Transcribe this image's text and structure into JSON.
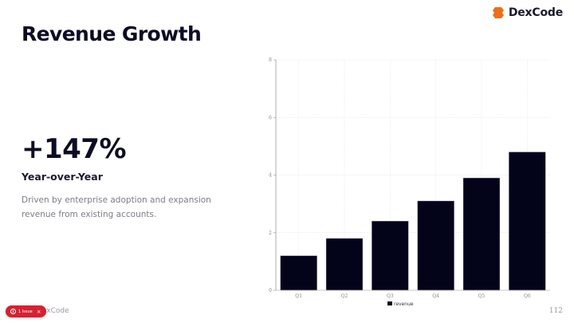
{
  "brand": {
    "name": "DexCode",
    "accent_color": "#e8711c"
  },
  "slide": {
    "title": "Revenue Growth",
    "stat_value": "+147%",
    "stat_label": "Year-over-Year",
    "description": "Driven by enterprise adoption and expansion revenue from existing accounts."
  },
  "footer": {
    "brand_text": "DexCode",
    "page_number": "112"
  },
  "issue_badge": {
    "label": "1 Issue",
    "close": "×",
    "color": "#d32233"
  },
  "chart_data": {
    "type": "bar",
    "title": "",
    "xlabel": "",
    "ylabel": "",
    "categories": [
      "Q1",
      "Q2",
      "Q3",
      "Q4",
      "Q5",
      "Q6"
    ],
    "series": [
      {
        "name": "revenue",
        "values": [
          1.2,
          1.8,
          2.4,
          3.1,
          3.9,
          4.8
        ],
        "color": "#03031a"
      }
    ],
    "ylim": [
      0,
      8
    ],
    "yticks": [
      0,
      2,
      4,
      6,
      8
    ],
    "grid": true,
    "legend_position": "bottom"
  }
}
